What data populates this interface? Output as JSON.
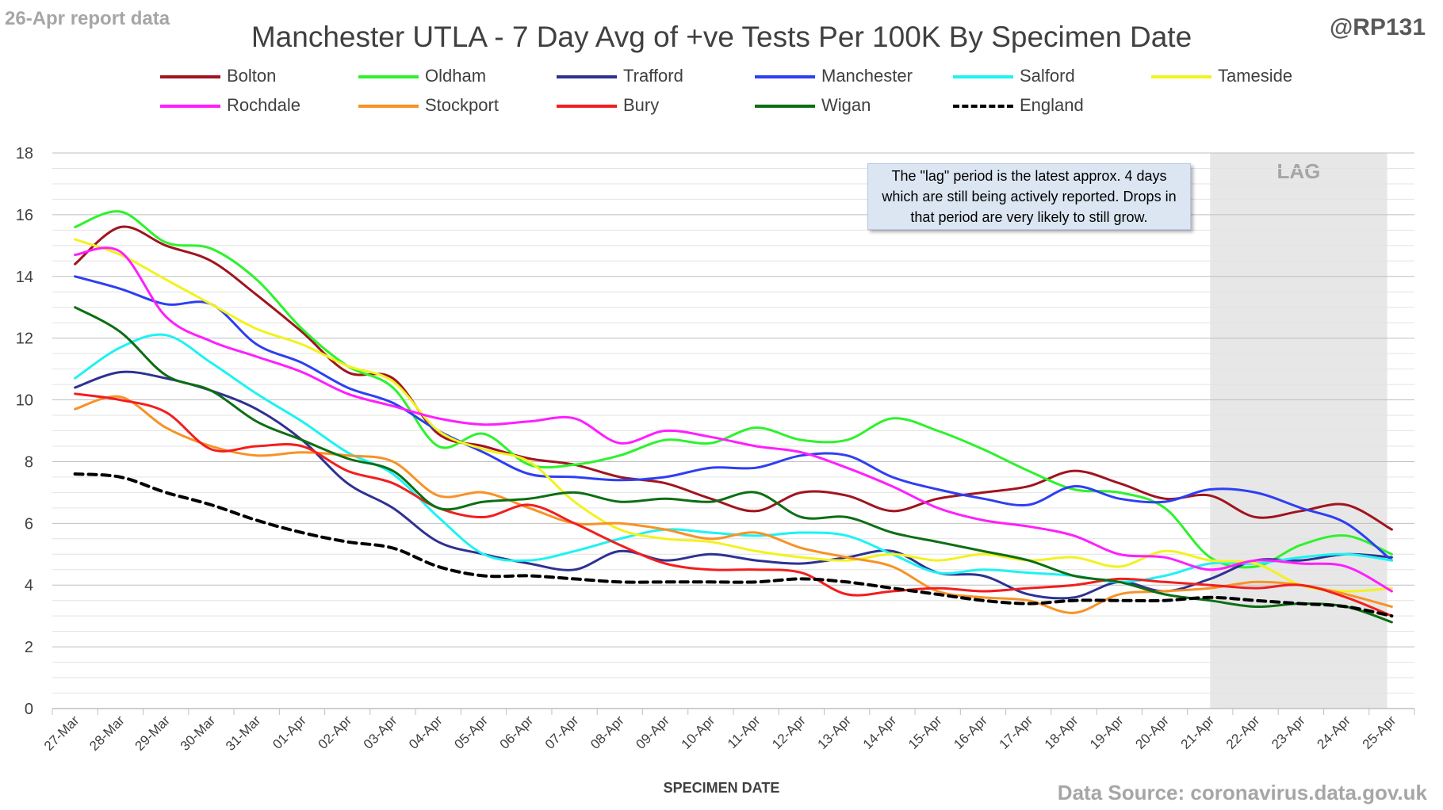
{
  "header": {
    "report_tag": "26-Apr report data",
    "handle": "@RP131",
    "source": "Data Source: coronavirus.data.gov.uk"
  },
  "chart_data": {
    "type": "line",
    "title": "Manchester UTLA - 7 Day Avg of +ve Tests Per 100K By Specimen Date",
    "xlabel": "SPECIMEN DATE",
    "ylabel": "",
    "ylim": [
      0,
      18
    ],
    "yticks": [
      0,
      2,
      4,
      6,
      8,
      10,
      12,
      14,
      16,
      18
    ],
    "grid": true,
    "legend_position": "top",
    "categories": [
      "27-Mar",
      "28-Mar",
      "29-Mar",
      "30-Mar",
      "31-Mar",
      "01-Apr",
      "02-Apr",
      "03-Apr",
      "04-Apr",
      "05-Apr",
      "06-Apr",
      "07-Apr",
      "08-Apr",
      "09-Apr",
      "10-Apr",
      "11-Apr",
      "12-Apr",
      "13-Apr",
      "14-Apr",
      "15-Apr",
      "16-Apr",
      "17-Apr",
      "18-Apr",
      "19-Apr",
      "20-Apr",
      "21-Apr",
      "22-Apr",
      "23-Apr",
      "24-Apr",
      "25-Apr"
    ],
    "lag": {
      "label": "LAG",
      "start_index": 25.5,
      "end_index": 29.4,
      "color": "#e7e7e7"
    },
    "note": "The \"lag\" period is the latest approx. 4 days which are still being actively reported. Drops in that period are very likely to still grow.",
    "series": [
      {
        "name": "Bolton",
        "color": "#a0141e",
        "dashed": false,
        "values": [
          14.4,
          15.6,
          15.0,
          14.5,
          13.4,
          12.2,
          10.9,
          10.7,
          8.9,
          8.5,
          8.1,
          7.9,
          7.5,
          7.3,
          6.8,
          6.4,
          7.0,
          6.9,
          6.4,
          6.8,
          7.0,
          7.2,
          7.7,
          7.3,
          6.8,
          6.9,
          6.2,
          6.4,
          6.6,
          5.8
        ]
      },
      {
        "name": "Oldham",
        "color": "#2df22d",
        "dashed": false,
        "values": [
          15.6,
          16.1,
          15.1,
          14.9,
          13.9,
          12.3,
          11.1,
          10.4,
          8.5,
          8.9,
          7.9,
          7.9,
          8.2,
          8.7,
          8.6,
          9.1,
          8.7,
          8.7,
          9.4,
          9.0,
          8.4,
          7.7,
          7.1,
          7.0,
          6.5,
          4.9,
          4.6,
          5.3,
          5.6,
          5.0
        ]
      },
      {
        "name": "Trafford",
        "color": "#2e3192",
        "dashed": false,
        "values": [
          10.4,
          10.9,
          10.7,
          10.3,
          9.7,
          8.7,
          7.3,
          6.5,
          5.4,
          5.0,
          4.7,
          4.5,
          5.1,
          4.8,
          5.0,
          4.8,
          4.7,
          4.9,
          5.1,
          4.4,
          4.3,
          3.7,
          3.6,
          4.1,
          3.8,
          4.2,
          4.8,
          4.8,
          5.0,
          4.9
        ]
      },
      {
        "name": "Manchester",
        "color": "#2e3ff2",
        "dashed": false,
        "values": [
          14.0,
          13.6,
          13.1,
          13.1,
          11.8,
          11.2,
          10.4,
          9.9,
          9.0,
          8.3,
          7.6,
          7.5,
          7.4,
          7.5,
          7.8,
          7.8,
          8.2,
          8.2,
          7.5,
          7.1,
          6.8,
          6.6,
          7.2,
          6.8,
          6.7,
          7.1,
          7.0,
          6.5,
          6.0,
          4.8
        ]
      },
      {
        "name": "Salford",
        "color": "#1ef2f2",
        "dashed": false,
        "values": [
          10.7,
          11.7,
          12.1,
          11.2,
          10.2,
          9.3,
          8.3,
          7.6,
          6.2,
          5.0,
          4.8,
          5.1,
          5.5,
          5.8,
          5.7,
          5.6,
          5.7,
          5.6,
          5.0,
          4.4,
          4.5,
          4.4,
          4.3,
          4.1,
          4.3,
          4.7,
          4.7,
          4.9,
          5.0,
          4.8
        ]
      },
      {
        "name": "Tameside",
        "color": "#f2f21e",
        "dashed": false,
        "values": [
          15.2,
          14.7,
          13.9,
          13.1,
          12.3,
          11.8,
          11.1,
          10.6,
          9.0,
          8.4,
          8.0,
          6.7,
          5.8,
          5.5,
          5.4,
          5.1,
          4.9,
          4.8,
          5.0,
          4.8,
          5.0,
          4.8,
          4.9,
          4.6,
          5.1,
          4.8,
          4.7,
          4.0,
          3.8,
          3.9
        ]
      },
      {
        "name": "Rochdale",
        "color": "#ff1eff",
        "dashed": false,
        "values": [
          14.7,
          14.8,
          12.7,
          11.9,
          11.4,
          10.9,
          10.2,
          9.8,
          9.4,
          9.2,
          9.3,
          9.4,
          8.6,
          9.0,
          8.8,
          8.5,
          8.3,
          7.8,
          7.2,
          6.5,
          6.1,
          5.9,
          5.6,
          5.0,
          4.9,
          4.5,
          4.8,
          4.7,
          4.6,
          3.8
        ]
      },
      {
        "name": "Stockport",
        "color": "#f79226",
        "dashed": false,
        "values": [
          9.7,
          10.1,
          9.1,
          8.5,
          8.2,
          8.3,
          8.2,
          8.0,
          6.9,
          7.0,
          6.5,
          6.0,
          6.0,
          5.8,
          5.5,
          5.7,
          5.2,
          4.9,
          4.6,
          3.8,
          3.6,
          3.5,
          3.1,
          3.7,
          3.8,
          3.9,
          4.1,
          4.0,
          3.7,
          3.3
        ]
      },
      {
        "name": "Bury",
        "color": "#f21e1e",
        "dashed": false,
        "values": [
          10.2,
          10.0,
          9.6,
          8.4,
          8.5,
          8.5,
          7.7,
          7.3,
          6.5,
          6.2,
          6.6,
          6.0,
          5.3,
          4.7,
          4.5,
          4.5,
          4.4,
          3.7,
          3.8,
          3.9,
          3.8,
          3.9,
          4.0,
          4.2,
          4.1,
          4.0,
          3.9,
          4.0,
          3.6,
          3.0
        ]
      },
      {
        "name": "Wigan",
        "color": "#0d6e13",
        "dashed": false,
        "values": [
          13.0,
          12.2,
          10.8,
          10.3,
          9.3,
          8.7,
          8.1,
          7.7,
          6.5,
          6.7,
          6.8,
          7.0,
          6.7,
          6.8,
          6.7,
          7.0,
          6.2,
          6.2,
          5.7,
          5.4,
          5.1,
          4.8,
          4.3,
          4.1,
          3.7,
          3.5,
          3.3,
          3.4,
          3.3,
          2.8
        ]
      },
      {
        "name": "England",
        "color": "#000000",
        "dashed": true,
        "values": [
          7.6,
          7.5,
          7.0,
          6.6,
          6.1,
          5.7,
          5.4,
          5.2,
          4.6,
          4.3,
          4.3,
          4.2,
          4.1,
          4.1,
          4.1,
          4.1,
          4.2,
          4.1,
          3.9,
          3.7,
          3.5,
          3.4,
          3.5,
          3.5,
          3.5,
          3.6,
          3.5,
          3.4,
          3.3,
          3.0
        ]
      }
    ]
  }
}
